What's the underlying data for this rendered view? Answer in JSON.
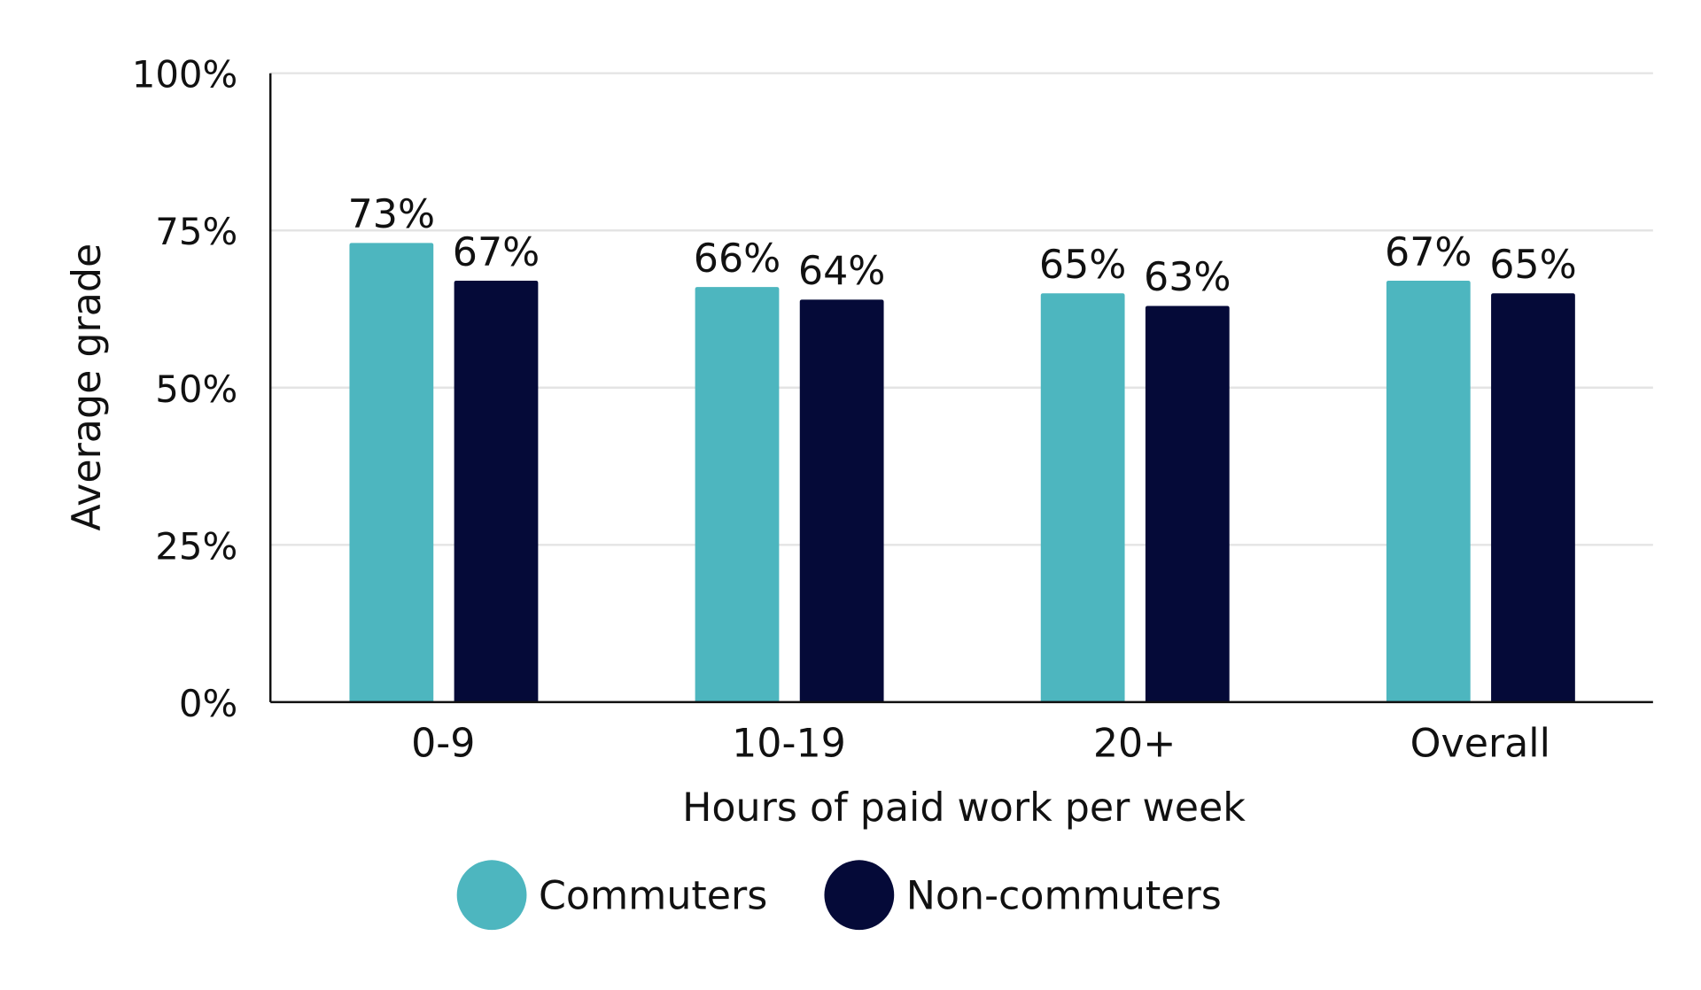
{
  "chart_data": {
    "type": "bar",
    "title": "",
    "xlabel": "Hours of paid work per week",
    "ylabel": "Average grade",
    "ylim": [
      0,
      100
    ],
    "yticks": [
      "0%",
      "25%",
      "50%",
      "75%",
      "100%"
    ],
    "ytick_values": [
      0,
      25,
      50,
      75,
      100
    ],
    "grid": true,
    "legend_position": "bottom-center",
    "categories": [
      "0-9",
      "10-19",
      "20+",
      "Overall"
    ],
    "series": [
      {
        "name": "Commuters",
        "color": "#4db6bf",
        "values": [
          73,
          66,
          65,
          67
        ],
        "labels": [
          "73%",
          "66%",
          "65%",
          "67%"
        ]
      },
      {
        "name": "Non-commuters",
        "color": "#050a38",
        "values": [
          67,
          64,
          63,
          65
        ],
        "labels": [
          "67%",
          "64%",
          "63%",
          "65%"
        ]
      }
    ]
  }
}
